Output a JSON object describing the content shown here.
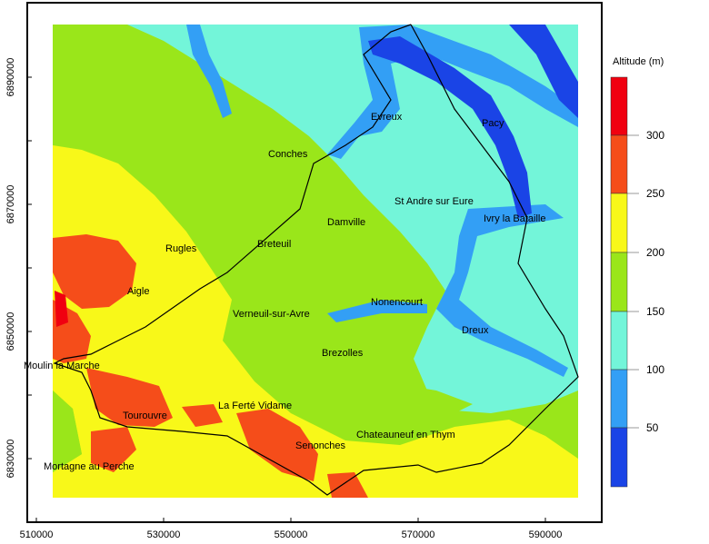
{
  "chart_data": {
    "type": "map",
    "xlim": [
      508000,
      600000
    ],
    "ylim": [
      6819000,
      6900000
    ],
    "x_ticks": [
      "510000",
      "530000",
      "550000",
      "570000",
      "590000"
    ],
    "y_ticks": [
      "6830000",
      "6850000",
      "6870000",
      "6890000"
    ],
    "legend": {
      "title": "Altitude (m)",
      "placement": "right",
      "breaks": [
        "50",
        "100",
        "150",
        "200",
        "250",
        "300"
      ],
      "colors": [
        "#1a44e6",
        "#339ff5",
        "#73f5d9",
        "#9ae61a",
        "#f8f819",
        "#f54d1a",
        "#f00010"
      ]
    },
    "towns": [
      "Evreux",
      "Pacy",
      "Conches",
      "St Andre sur Eure",
      "Damville",
      "Ivry la Bataille",
      "Rugles",
      "Breteuil",
      "Aigle",
      "Nonencourt",
      "Verneuil-sur-Avre",
      "Dreux",
      "Brezolles",
      "Moulin la Marche",
      "Tourouvre",
      "La Ferté Vidame",
      "Chateauneuf en Thym",
      "Senonches",
      "Mortagne au Perche"
    ]
  }
}
